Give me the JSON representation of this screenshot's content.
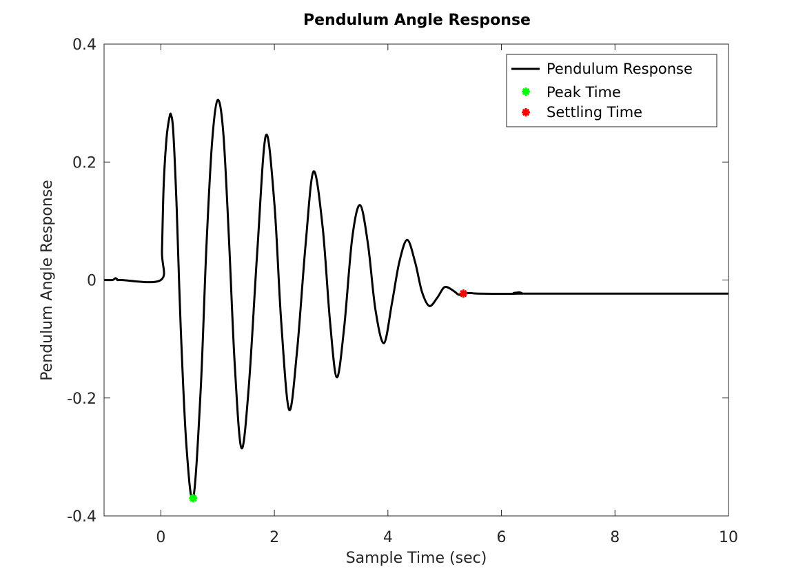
{
  "chart_data": {
    "type": "line",
    "title": "Pendulum Angle Response",
    "xlabel": "Sample Time (sec)",
    "ylabel": "Pendulum Angle Response",
    "xlim": [
      -1,
      10
    ],
    "ylim": [
      -0.4,
      0.4
    ],
    "xticks": [
      0,
      2,
      4,
      6,
      8,
      10
    ],
    "xtick_labels": [
      "0",
      "2",
      "4",
      "6",
      "8",
      "10"
    ],
    "yticks": [
      -0.4,
      -0.2,
      0,
      0.2,
      0.4
    ],
    "ytick_labels": [
      "-0.4",
      "-0.2",
      "0",
      "0.2",
      "0.4"
    ],
    "grid": false,
    "legend_position": "top-right",
    "series": [
      {
        "name": "Pendulum Response",
        "color": "#000000",
        "style": "line",
        "x": [
          -1.0,
          -0.85,
          -0.8,
          -0.75,
          -0.7,
          0.0,
          0.02,
          0.05,
          0.1,
          0.15,
          0.18,
          0.22,
          0.28,
          0.35,
          0.45,
          0.57,
          0.7,
          0.8,
          0.9,
          1.0,
          1.1,
          1.2,
          1.3,
          1.42,
          1.55,
          1.7,
          1.85,
          2.0,
          2.12,
          2.26,
          2.4,
          2.55,
          2.69,
          2.85,
          2.98,
          3.1,
          3.23,
          3.37,
          3.51,
          3.65,
          3.78,
          3.93,
          4.07,
          4.2,
          4.34,
          4.48,
          4.6,
          4.73,
          4.87,
          5.0,
          5.15,
          5.25,
          5.33,
          5.45,
          5.6,
          6.3,
          6.32,
          6.34,
          8.0,
          10.0
        ],
        "y": [
          0.0,
          0.0,
          0.003,
          0.0,
          0.0,
          0.0,
          0.05,
          0.16,
          0.24,
          0.275,
          0.28,
          0.25,
          0.12,
          -0.08,
          -0.28,
          -0.37,
          -0.19,
          0.05,
          0.23,
          0.305,
          0.25,
          0.07,
          -0.14,
          -0.285,
          -0.18,
          0.05,
          0.245,
          0.13,
          -0.07,
          -0.22,
          -0.12,
          0.06,
          0.184,
          0.09,
          -0.07,
          -0.165,
          -0.08,
          0.07,
          0.127,
          0.06,
          -0.05,
          -0.107,
          -0.04,
          0.03,
          0.068,
          0.03,
          -0.02,
          -0.044,
          -0.03,
          -0.012,
          -0.018,
          -0.025,
          -0.023,
          -0.022,
          -0.023,
          -0.023,
          -0.021,
          -0.023,
          -0.023,
          -0.023
        ]
      },
      {
        "name": "Peak Time",
        "color": "#00ff00",
        "style": "marker",
        "x": [
          0.57
        ],
        "y": [
          -0.37
        ]
      },
      {
        "name": "Settling Time",
        "color": "#ff0000",
        "style": "marker",
        "x": [
          5.33
        ],
        "y": [
          -0.023
        ]
      }
    ]
  }
}
